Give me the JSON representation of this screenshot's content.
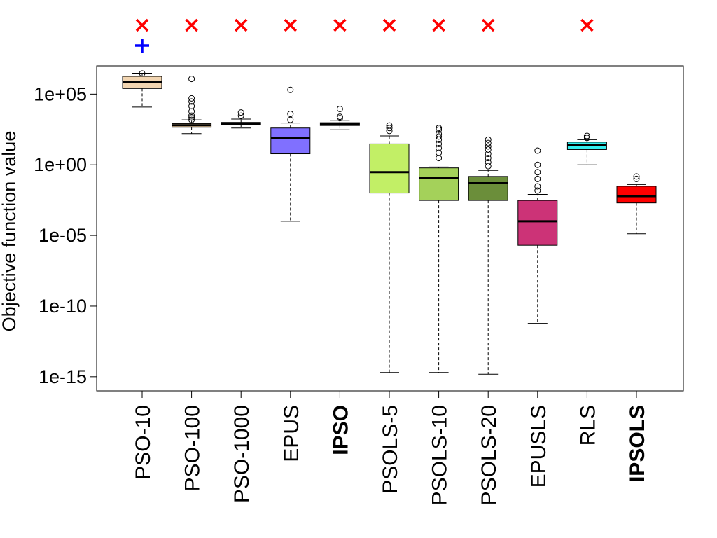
{
  "chart_data": {
    "type": "box",
    "title": "",
    "xlabel": "",
    "ylabel": "Objective function value",
    "yscale": "log10",
    "ylim": [
      1e-16,
      10000000.0
    ],
    "yticks": [
      {
        "value": 1e-15,
        "label": "1e-15"
      },
      {
        "value": 1e-10,
        "label": "1e-10"
      },
      {
        "value": 1e-05,
        "label": "1e-05"
      },
      {
        "value": 1,
        "label": "1e+00"
      },
      {
        "value": 100000.0,
        "label": "1e+05"
      }
    ],
    "categories": [
      "PSO-10",
      "PSO-100",
      "PSO-1000",
      "EPUS",
      "IPSO",
      "PSOLS-5",
      "PSOLS-10",
      "PSOLS-20",
      "EPUSLS",
      "RLS",
      "IPSOLS"
    ],
    "bold_categories": [
      "IPSO",
      "IPSOLS"
    ],
    "boxes": [
      {
        "name": "PSO-10",
        "color": "#f2d5b1",
        "whisker_low": 12000.0,
        "q1": 250000.0,
        "median": 700000.0,
        "q3": 1800000.0,
        "whisker_high": 3000000.0,
        "outliers": [
          2900000.0
        ]
      },
      {
        "name": "PSO-100",
        "color": "#d8b88d",
        "whisker_low": 160,
        "q1": 450,
        "median": 630,
        "q3": 820,
        "whisker_high": 1500,
        "outliers": [
          1200000.0,
          50000.0,
          30000.0,
          14000.0,
          6000.0,
          3000.0,
          2200.0,
          1500.0
        ]
      },
      {
        "name": "PSO-1000",
        "color": "#cfb089",
        "whisker_low": 400,
        "q1": 700,
        "median": 850,
        "q3": 1000,
        "whisker_high": 1700,
        "outliers": [
          5000.0,
          3000.0
        ]
      },
      {
        "name": "EPUS",
        "color": "#8070ff",
        "whisker_low": 0.0001,
        "q1": 6,
        "median": 80,
        "q3": 400,
        "whisker_high": 900,
        "outliers": [
          200000.0,
          4000.0,
          1500.0
        ]
      },
      {
        "name": "IPSO",
        "color": "#1a237e",
        "whisker_low": 300,
        "q1": 600,
        "median": 780,
        "q3": 950,
        "whisker_high": 1400,
        "outliers": [
          9000.0,
          2500.0,
          2000.0
        ]
      },
      {
        "name": "PSOLS-5",
        "color": "#c2ef66",
        "whisker_low": 2e-15,
        "q1": 0.01,
        "median": 0.3,
        "q3": 30,
        "whisker_high": 110,
        "outliers": [
          600,
          400,
          250
        ]
      },
      {
        "name": "PSOLS-10",
        "color": "#a4d15a",
        "whisker_low": 2e-15,
        "q1": 0.003,
        "median": 0.12,
        "q3": 0.6,
        "whisker_high": 0.7,
        "outliers": [
          400,
          300,
          150,
          100,
          60,
          30,
          15,
          7,
          3
        ]
      },
      {
        "name": "PSOLS-20",
        "color": "#6b8e3a",
        "whisker_low": 1.5e-15,
        "q1": 0.003,
        "median": 0.05,
        "q3": 0.15,
        "whisker_high": 0.4,
        "outliers": [
          60,
          35,
          20,
          12,
          6,
          3,
          1.5,
          0.8
        ]
      },
      {
        "name": "EPUSLS",
        "color": "#cc3377",
        "whisker_low": 6e-12,
        "q1": 2e-06,
        "median": 0.0001,
        "q3": 0.003,
        "whisker_high": 0.008,
        "outliers": [
          10,
          1,
          0.3,
          0.1,
          0.03,
          0.015
        ]
      },
      {
        "name": "RLS",
        "color": "#33eeee",
        "whisker_low": 1,
        "q1": 12,
        "median": 25,
        "q3": 40,
        "whisker_high": 60,
        "outliers": [
          110,
          80
        ]
      },
      {
        "name": "IPSOLS",
        "color": "#ff0000",
        "whisker_low": 1.3e-05,
        "q1": 0.002,
        "median": 0.006,
        "q3": 0.03,
        "whisker_high": 0.04,
        "outliers": [
          0.15,
          0.1
        ]
      }
    ],
    "markers_above": [
      {
        "category": "PSO-10",
        "symbol": "×",
        "color": "#ff0000"
      },
      {
        "category": "PSO-100",
        "symbol": "×",
        "color": "#ff0000"
      },
      {
        "category": "PSO-1000",
        "symbol": "×",
        "color": "#ff0000"
      },
      {
        "category": "EPUS",
        "symbol": "×",
        "color": "#ff0000"
      },
      {
        "category": "IPSO",
        "symbol": "×",
        "color": "#ff0000"
      },
      {
        "category": "PSOLS-5",
        "symbol": "×",
        "color": "#ff0000"
      },
      {
        "category": "PSOLS-10",
        "symbol": "×",
        "color": "#ff0000"
      },
      {
        "category": "PSOLS-20",
        "symbol": "×",
        "color": "#ff0000"
      },
      {
        "category": "RLS",
        "symbol": "×",
        "color": "#ff0000"
      },
      {
        "category": "PSO-10",
        "symbol": "+",
        "color": "#0000ff",
        "row": 2
      }
    ]
  }
}
